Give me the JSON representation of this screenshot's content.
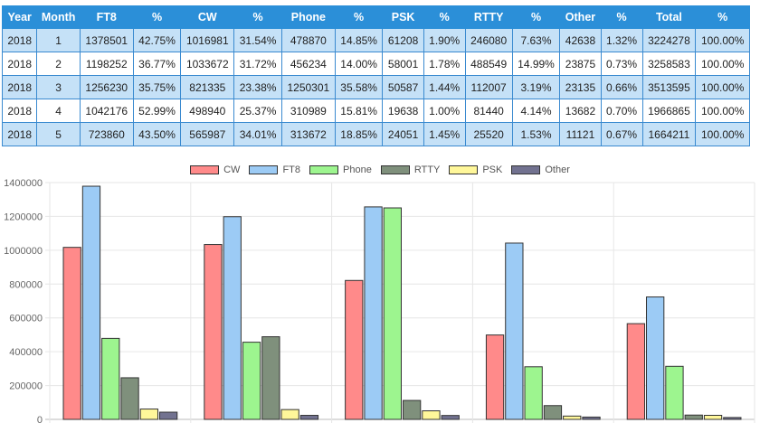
{
  "table": {
    "headers": [
      "Year",
      "Month",
      "FT8",
      "%",
      "CW",
      "%",
      "Phone",
      "%",
      "PSK",
      "%",
      "RTTY",
      "%",
      "Other",
      "%",
      "Total",
      "%"
    ],
    "rows": [
      [
        "2018",
        "1",
        "1378501",
        "42.75%",
        "1016981",
        "31.54%",
        "478870",
        "14.85%",
        "61208",
        "1.90%",
        "246080",
        "7.63%",
        "42638",
        "1.32%",
        "3224278",
        "100.00%"
      ],
      [
        "2018",
        "2",
        "1198252",
        "36.77%",
        "1033672",
        "31.72%",
        "456234",
        "14.00%",
        "58001",
        "1.78%",
        "488549",
        "14.99%",
        "23875",
        "0.73%",
        "3258583",
        "100.00%"
      ],
      [
        "2018",
        "3",
        "1256230",
        "35.75%",
        "821335",
        "23.38%",
        "1250301",
        "35.58%",
        "50587",
        "1.44%",
        "112007",
        "3.19%",
        "23135",
        "0.66%",
        "3513595",
        "100.00%"
      ],
      [
        "2018",
        "4",
        "1042176",
        "52.99%",
        "498940",
        "25.37%",
        "310989",
        "15.81%",
        "19638",
        "1.00%",
        "81440",
        "4.14%",
        "13682",
        "0.70%",
        "1966865",
        "100.00%"
      ],
      [
        "2018",
        "5",
        "723860",
        "43.50%",
        "565987",
        "34.01%",
        "313672",
        "18.85%",
        "24051",
        "1.45%",
        "25520",
        "1.53%",
        "11121",
        "0.67%",
        "1664211",
        "100.00%"
      ]
    ]
  },
  "chart_data": {
    "type": "bar",
    "categories": [
      "1",
      "2",
      "3",
      "4",
      "5"
    ],
    "show_category_labels": false,
    "series": [
      {
        "name": "CW",
        "color": "#ff8a8a",
        "values": [
          1016981,
          1033672,
          821335,
          498940,
          565987
        ]
      },
      {
        "name": "FT8",
        "color": "#9ccbf5",
        "values": [
          1378501,
          1198252,
          1256230,
          1042176,
          723860
        ]
      },
      {
        "name": "Phone",
        "color": "#9df58f",
        "values": [
          478870,
          456234,
          1250301,
          310989,
          313672
        ]
      },
      {
        "name": "RTTY",
        "color": "#7f907c",
        "values": [
          246080,
          488549,
          112007,
          81440,
          25520
        ]
      },
      {
        "name": "PSK",
        "color": "#fff79a",
        "values": [
          61208,
          58001,
          50587,
          19638,
          24051
        ]
      },
      {
        "name": "Other",
        "color": "#727290",
        "values": [
          42638,
          23875,
          23135,
          13682,
          11121
        ]
      }
    ],
    "ylim": [
      0,
      1400000
    ],
    "yticks": [
      0,
      200000,
      400000,
      600000,
      800000,
      1000000,
      1200000,
      1400000
    ],
    "ytick_labels": [
      "0",
      "200000",
      "400000",
      "600000",
      "800000",
      "1000000",
      "1200000",
      "1400000"
    ],
    "legend": "top-center",
    "grid": true
  }
}
